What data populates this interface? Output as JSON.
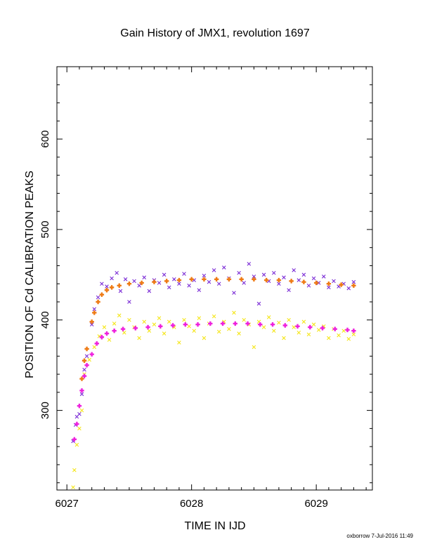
{
  "chart_data": {
    "type": "scatter",
    "title": "Gain History of JMX1, revolution 1697",
    "xlabel": "TIME IN IJD",
    "ylabel": "POSITION OF Cd CALIBRATION PEAKS",
    "xlim": [
      6026.92,
      6029.45
    ],
    "ylim": [
      212,
      680
    ],
    "x_ticks": [
      6027,
      6028,
      6029
    ],
    "y_ticks": [
      300,
      400,
      500,
      600
    ],
    "grid": false,
    "legend": "none",
    "series": [
      {
        "marker": "x",
        "color": "#7b2cd6",
        "points": [
          [
            6027.05,
            266
          ],
          [
            6027.07,
            284
          ],
          [
            6027.08,
            293
          ],
          [
            6027.1,
            296
          ],
          [
            6027.12,
            318
          ],
          [
            6027.14,
            345
          ],
          [
            6027.16,
            360
          ],
          [
            6027.2,
            395
          ],
          [
            6027.22,
            412
          ],
          [
            6027.25,
            425
          ],
          [
            6027.28,
            440
          ],
          [
            6027.32,
            437
          ],
          [
            6027.36,
            446
          ],
          [
            6027.4,
            452
          ],
          [
            6027.43,
            432
          ],
          [
            6027.47,
            445
          ],
          [
            6027.5,
            420
          ],
          [
            6027.54,
            443
          ],
          [
            6027.58,
            438
          ],
          [
            6027.62,
            447
          ],
          [
            6027.66,
            432
          ],
          [
            6027.7,
            444
          ],
          [
            6027.74,
            441
          ],
          [
            6027.78,
            450
          ],
          [
            6027.82,
            436
          ],
          [
            6027.86,
            445
          ],
          [
            6027.9,
            440
          ],
          [
            6027.94,
            451
          ],
          [
            6027.98,
            438
          ],
          [
            6028.02,
            444
          ],
          [
            6028.06,
            433
          ],
          [
            6028.1,
            449
          ],
          [
            6028.14,
            442
          ],
          [
            6028.18,
            455
          ],
          [
            6028.22,
            440
          ],
          [
            6028.26,
            458
          ],
          [
            6028.3,
            446
          ],
          [
            6028.34,
            430
          ],
          [
            6028.38,
            452
          ],
          [
            6028.42,
            441
          ],
          [
            6028.46,
            462
          ],
          [
            6028.5,
            448
          ],
          [
            6028.54,
            418
          ],
          [
            6028.58,
            450
          ],
          [
            6028.62,
            443
          ],
          [
            6028.66,
            452
          ],
          [
            6028.7,
            440
          ],
          [
            6028.74,
            447
          ],
          [
            6028.78,
            433
          ],
          [
            6028.82,
            455
          ],
          [
            6028.86,
            444
          ],
          [
            6028.9,
            450
          ],
          [
            6028.94,
            438
          ],
          [
            6028.98,
            446
          ],
          [
            6029.02,
            441
          ],
          [
            6029.06,
            448
          ],
          [
            6029.1,
            436
          ],
          [
            6029.14,
            443
          ],
          [
            6029.18,
            437
          ],
          [
            6029.22,
            440
          ],
          [
            6029.26,
            435
          ],
          [
            6029.3,
            442
          ]
        ]
      },
      {
        "marker": "+",
        "color": "#ee7a14",
        "points": [
          [
            6027.12,
            335
          ],
          [
            6027.14,
            355
          ],
          [
            6027.16,
            368
          ],
          [
            6027.2,
            398
          ],
          [
            6027.22,
            408
          ],
          [
            6027.25,
            420
          ],
          [
            6027.28,
            428
          ],
          [
            6027.32,
            433
          ],
          [
            6027.36,
            436
          ],
          [
            6027.42,
            438
          ],
          [
            6027.5,
            440
          ],
          [
            6027.6,
            441
          ],
          [
            6027.7,
            442
          ],
          [
            6027.8,
            443
          ],
          [
            6027.9,
            444
          ],
          [
            6028.0,
            445
          ],
          [
            6028.1,
            445
          ],
          [
            6028.2,
            445
          ],
          [
            6028.3,
            445
          ],
          [
            6028.4,
            445
          ],
          [
            6028.5,
            445
          ],
          [
            6028.6,
            444
          ],
          [
            6028.7,
            444
          ],
          [
            6028.8,
            443
          ],
          [
            6028.9,
            442
          ],
          [
            6029.0,
            441
          ],
          [
            6029.1,
            440
          ],
          [
            6029.2,
            439
          ],
          [
            6029.3,
            438
          ]
        ]
      },
      {
        "marker": "x",
        "color": "#f5e61a",
        "points": [
          [
            6027.05,
            215
          ],
          [
            6027.06,
            234
          ],
          [
            6027.08,
            262
          ],
          [
            6027.1,
            280
          ],
          [
            6027.12,
            300
          ],
          [
            6027.14,
            340
          ],
          [
            6027.18,
            356
          ],
          [
            6027.22,
            370
          ],
          [
            6027.26,
            382
          ],
          [
            6027.3,
            392
          ],
          [
            6027.34,
            378
          ],
          [
            6027.38,
            396
          ],
          [
            6027.42,
            405
          ],
          [
            6027.46,
            386
          ],
          [
            6027.5,
            400
          ],
          [
            6027.54,
            392
          ],
          [
            6027.58,
            380
          ],
          [
            6027.62,
            398
          ],
          [
            6027.66,
            388
          ],
          [
            6027.7,
            395
          ],
          [
            6027.74,
            402
          ],
          [
            6027.78,
            385
          ],
          [
            6027.82,
            398
          ],
          [
            6027.86,
            392
          ],
          [
            6027.9,
            375
          ],
          [
            6027.94,
            400
          ],
          [
            6027.98,
            393
          ],
          [
            6028.02,
            388
          ],
          [
            6028.06,
            402
          ],
          [
            6028.1,
            380
          ],
          [
            6028.14,
            396
          ],
          [
            6028.18,
            404
          ],
          [
            6028.22,
            387
          ],
          [
            6028.26,
            398
          ],
          [
            6028.3,
            390
          ],
          [
            6028.34,
            408
          ],
          [
            6028.38,
            385
          ],
          [
            6028.42,
            400
          ],
          [
            6028.46,
            395
          ],
          [
            6028.5,
            370
          ],
          [
            6028.54,
            398
          ],
          [
            6028.58,
            392
          ],
          [
            6028.62,
            403
          ],
          [
            6028.66,
            388
          ],
          [
            6028.7,
            397
          ],
          [
            6028.74,
            380
          ],
          [
            6028.78,
            400
          ],
          [
            6028.82,
            392
          ],
          [
            6028.86,
            386
          ],
          [
            6028.9,
            398
          ],
          [
            6028.94,
            384
          ],
          [
            6028.98,
            395
          ],
          [
            6029.02,
            389
          ],
          [
            6029.06,
            393
          ],
          [
            6029.1,
            380
          ],
          [
            6029.14,
            390
          ],
          [
            6029.18,
            383
          ],
          [
            6029.22,
            388
          ],
          [
            6029.26,
            379
          ],
          [
            6029.3,
            384
          ]
        ]
      },
      {
        "marker": "+",
        "color": "#ee22dd",
        "points": [
          [
            6027.06,
            268
          ],
          [
            6027.08,
            285
          ],
          [
            6027.1,
            305
          ],
          [
            6027.12,
            322
          ],
          [
            6027.14,
            338
          ],
          [
            6027.16,
            350
          ],
          [
            6027.2,
            362
          ],
          [
            6027.24,
            374
          ],
          [
            6027.28,
            381
          ],
          [
            6027.32,
            385
          ],
          [
            6027.38,
            388
          ],
          [
            6027.45,
            390
          ],
          [
            6027.55,
            391
          ],
          [
            6027.65,
            392
          ],
          [
            6027.75,
            393
          ],
          [
            6027.85,
            394
          ],
          [
            6027.95,
            395
          ],
          [
            6028.05,
            395
          ],
          [
            6028.15,
            396
          ],
          [
            6028.25,
            396
          ],
          [
            6028.35,
            396
          ],
          [
            6028.45,
            396
          ],
          [
            6028.55,
            395
          ],
          [
            6028.65,
            395
          ],
          [
            6028.75,
            394
          ],
          [
            6028.85,
            393
          ],
          [
            6028.95,
            392
          ],
          [
            6029.05,
            391
          ],
          [
            6029.15,
            390
          ],
          [
            6029.25,
            389
          ],
          [
            6029.3,
            388
          ]
        ]
      }
    ],
    "footer": "oxborrow  7-Jul-2016 11:49"
  }
}
